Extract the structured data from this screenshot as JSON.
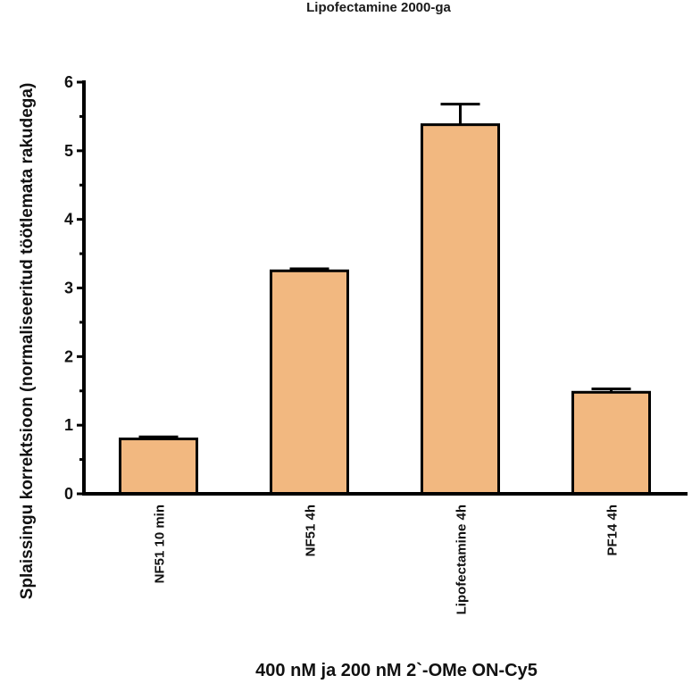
{
  "chart_data": {
    "type": "bar",
    "title": "Lipofectamine 2000-ga",
    "xlabel": "400 nM ja 200 nM 2`-OMe ON-Cy5",
    "ylabel": "Splaissingu korrektsioon (normaliseeritud töötlemata rakudega)",
    "categories": [
      "NF51 10 min",
      "NF51 4h",
      "Lipofectamine 4h",
      "PF14 4h"
    ],
    "values": [
      0.8,
      3.25,
      5.38,
      1.48
    ],
    "errors": [
      0.03,
      0.03,
      0.3,
      0.05
    ],
    "ylim": [
      0,
      6
    ],
    "yticks": [
      0,
      1,
      2,
      3,
      4,
      5,
      6
    ],
    "ytick_labels": [
      "0",
      "1",
      "2",
      "3",
      "4",
      "5",
      "6"
    ],
    "grid": false,
    "colors": {
      "bar_fill": "#f2b880",
      "bar_stroke": "#000000"
    }
  }
}
